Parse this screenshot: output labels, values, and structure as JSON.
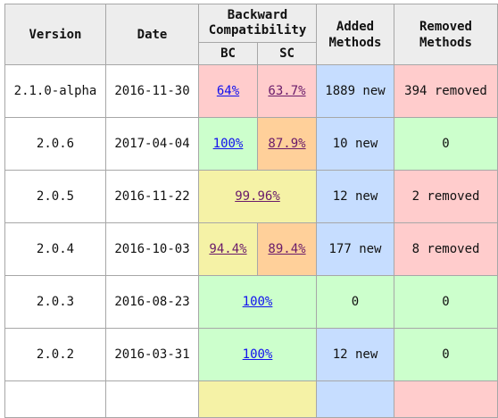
{
  "headers": {
    "version": "Version",
    "date": "Date",
    "backward_compat": "Backward Compatibility",
    "bc": "BC",
    "sc": "SC",
    "added": "Added Methods",
    "removed": "Removed Methods"
  },
  "rows": [
    {
      "version": "2.1.0-alpha",
      "date": "2016-11-30",
      "bc": "64%",
      "sc": "63.7%",
      "added": "1889 new",
      "removed": "394 removed"
    },
    {
      "version": "2.0.6",
      "date": "2017-04-04",
      "bc": "100%",
      "sc": "87.9%",
      "added": "10 new",
      "removed": "0"
    },
    {
      "version": "2.0.5",
      "date": "2016-11-22",
      "combined": "99.96%",
      "added": "12 new",
      "removed": "2 removed"
    },
    {
      "version": "2.0.4",
      "date": "2016-10-03",
      "bc": "94.4%",
      "sc": "89.4%",
      "added": "177 new",
      "removed": "8 removed"
    },
    {
      "version": "2.0.3",
      "date": "2016-08-23",
      "combined": "100%",
      "added": "0",
      "removed": "0"
    },
    {
      "version": "2.0.2",
      "date": "2016-03-31",
      "combined": "100%",
      "added": "12 new",
      "removed": "0"
    }
  ]
}
